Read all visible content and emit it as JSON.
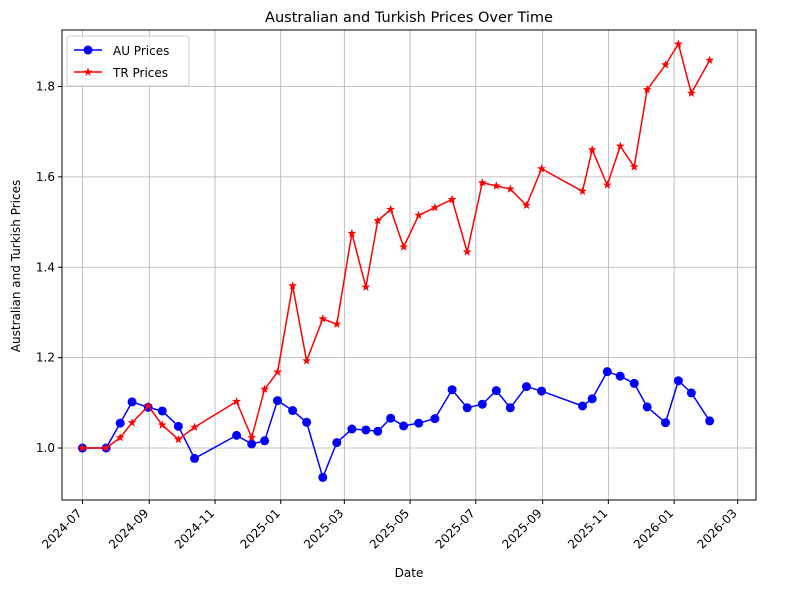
{
  "chart_data": {
    "type": "line",
    "title": "Australian and Turkish Prices Over Time",
    "xlabel": "Date",
    "ylabel": "Australian and Turkish Prices",
    "xlim": [
      "2024-06-12",
      "2026-03-18"
    ],
    "ylim": [
      0.885,
      1.925
    ],
    "grid": true,
    "legend_position": "top-left",
    "x_ticks": [
      "2024-07",
      "2024-09",
      "2024-11",
      "2025-01",
      "2025-03",
      "2025-05",
      "2025-07",
      "2025-09",
      "2025-11",
      "2026-01",
      "2026-03"
    ],
    "y_ticks": [
      1.0,
      1.2,
      1.4,
      1.6,
      1.8
    ],
    "y_tick_labels": [
      "1.0",
      "1.2",
      "1.4",
      "1.6",
      "1.8"
    ],
    "series": [
      {
        "name": "AU Prices",
        "color": "#0000ff",
        "marker": "circle",
        "points": [
          [
            "2024-07-01",
            1.0
          ],
          [
            "2024-07-23",
            1.0
          ],
          [
            "2024-08-05",
            1.055
          ],
          [
            "2024-08-16",
            1.102
          ],
          [
            "2024-08-31",
            1.09
          ],
          [
            "2024-09-13",
            1.082
          ],
          [
            "2024-09-28",
            1.048
          ],
          [
            "2024-10-13",
            0.977
          ],
          [
            "2024-11-21",
            1.028
          ],
          [
            "2024-12-05",
            1.009
          ],
          [
            "2024-12-17",
            1.016
          ],
          [
            "2024-12-29",
            1.105
          ],
          [
            "2025-01-12",
            1.083
          ],
          [
            "2025-01-25",
            1.057
          ],
          [
            "2025-02-09",
            0.935
          ],
          [
            "2025-02-22",
            1.012
          ],
          [
            "2025-03-08",
            1.042
          ],
          [
            "2025-03-21",
            1.04
          ],
          [
            "2025-04-01",
            1.037
          ],
          [
            "2025-04-13",
            1.066
          ],
          [
            "2025-04-25",
            1.049
          ],
          [
            "2025-05-09",
            1.055
          ],
          [
            "2025-05-24",
            1.065
          ],
          [
            "2025-06-09",
            1.129
          ],
          [
            "2025-06-23",
            1.089
          ],
          [
            "2025-07-07",
            1.097
          ],
          [
            "2025-07-20",
            1.127
          ],
          [
            "2025-08-02",
            1.089
          ],
          [
            "2025-08-17",
            1.136
          ],
          [
            "2025-08-31",
            1.126
          ],
          [
            "2025-10-08",
            1.093
          ],
          [
            "2025-10-17",
            1.109
          ],
          [
            "2025-10-31",
            1.169
          ],
          [
            "2025-11-12",
            1.159
          ],
          [
            "2025-11-25",
            1.143
          ],
          [
            "2025-12-07",
            1.091
          ],
          [
            "2025-12-24",
            1.056
          ],
          [
            "2026-01-05",
            1.149
          ],
          [
            "2026-01-17",
            1.122
          ],
          [
            "2026-02-03",
            1.06
          ]
        ]
      },
      {
        "name": "TR Prices",
        "color": "#ff0000",
        "marker": "star",
        "points": [
          [
            "2024-07-01",
            1.0
          ],
          [
            "2024-07-23",
            1.0
          ],
          [
            "2024-08-05",
            1.023
          ],
          [
            "2024-08-16",
            1.056
          ],
          [
            "2024-08-31",
            1.093
          ],
          [
            "2024-09-13",
            1.051
          ],
          [
            "2024-09-28",
            1.019
          ],
          [
            "2024-10-13",
            1.046
          ],
          [
            "2024-11-21",
            1.103
          ],
          [
            "2024-12-05",
            1.023
          ],
          [
            "2024-12-17",
            1.13
          ],
          [
            "2024-12-29",
            1.168
          ],
          [
            "2025-01-12",
            1.359
          ],
          [
            "2025-01-25",
            1.193
          ],
          [
            "2025-02-09",
            1.286
          ],
          [
            "2025-02-22",
            1.274
          ],
          [
            "2025-03-08",
            1.475
          ],
          [
            "2025-03-21",
            1.356
          ],
          [
            "2025-04-01",
            1.503
          ],
          [
            "2025-04-13",
            1.528
          ],
          [
            "2025-04-25",
            1.445
          ],
          [
            "2025-05-09",
            1.515
          ],
          [
            "2025-05-24",
            1.532
          ],
          [
            "2025-06-09",
            1.55
          ],
          [
            "2025-06-23",
            1.434
          ],
          [
            "2025-07-07",
            1.587
          ],
          [
            "2025-07-20",
            1.58
          ],
          [
            "2025-08-02",
            1.573
          ],
          [
            "2025-08-17",
            1.537
          ],
          [
            "2025-08-31",
            1.618
          ],
          [
            "2025-10-08",
            1.568
          ],
          [
            "2025-10-17",
            1.66
          ],
          [
            "2025-10-31",
            1.582
          ],
          [
            "2025-11-12",
            1.668
          ],
          [
            "2025-11-25",
            1.622
          ],
          [
            "2025-12-07",
            1.793
          ],
          [
            "2025-12-24",
            1.848
          ],
          [
            "2026-01-05",
            1.894
          ],
          [
            "2026-01-17",
            1.785
          ],
          [
            "2026-02-03",
            1.858
          ]
        ]
      }
    ]
  }
}
